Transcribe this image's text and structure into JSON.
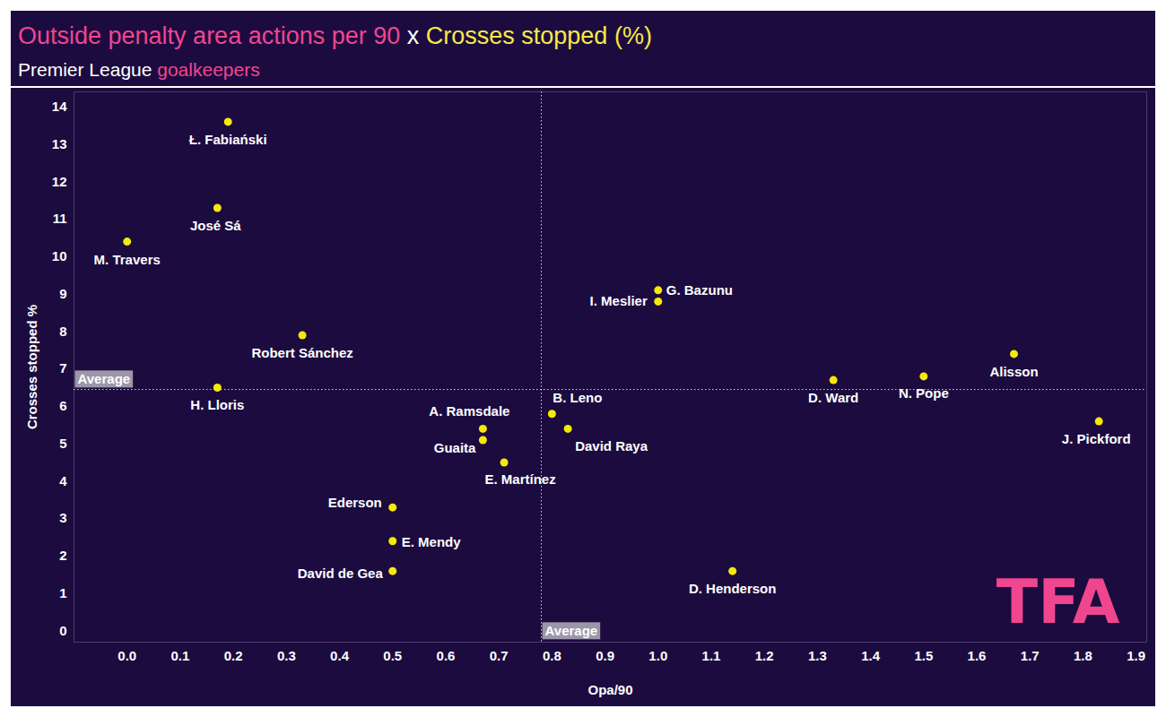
{
  "chart_data": {
    "type": "scatter",
    "title": [
      {
        "text": "Outside penalty area actions per 90",
        "color": "#f0468f"
      },
      {
        "text": " x ",
        "color": "#ffffff"
      },
      {
        "text": "Crosses stopped (%)",
        "color": "#f5e94a"
      }
    ],
    "subtitle": [
      {
        "text": "Premier League ",
        "color": "#ffffff"
      },
      {
        "text": "goalkeepers",
        "color": "#f0468f"
      }
    ],
    "x_label": "Opa/90",
    "y_label": "Crosses stopped %",
    "point_labels": [
      "Ł. Fabiański",
      "José Sá",
      "M. Travers",
      "Robert Sánchez",
      "H. Lloris",
      "A. Ramsdale",
      "Guaita",
      "E. Martínez",
      "Ederson",
      "E. Mendy",
      "David de Gea",
      "B. Leno",
      "David Raya",
      "I. Meslier",
      "G. Bazunu",
      "D. Henderson",
      "D. Ward",
      "N. Pope",
      "Alisson",
      "J. Pickford"
    ],
    "x": [
      0.19,
      0.17,
      0.0,
      0.33,
      0.17,
      0.67,
      0.67,
      0.71,
      0.5,
      0.5,
      0.5,
      0.8,
      0.83,
      1.0,
      1.0,
      1.14,
      1.33,
      1.5,
      1.67,
      1.83
    ],
    "values": [
      13.6,
      11.3,
      10.4,
      7.9,
      6.5,
      5.4,
      5.1,
      4.5,
      3.3,
      2.4,
      1.6,
      5.8,
      5.4,
      8.8,
      9.1,
      1.6,
      6.7,
      6.8,
      7.4,
      5.6
    ],
    "color": "#f5e90a",
    "x_average": 0.78,
    "y_average": 6.45,
    "average_label": "Average",
    "watermark": "TFA",
    "xlim": [
      -0.1,
      1.92
    ],
    "ylim": [
      -0.3,
      14.4
    ],
    "xticks": [
      {
        "value": 0,
        "label": "0.0"
      },
      0.1,
      0.2,
      0.3,
      0.4,
      0.5,
      0.6,
      0.7,
      0.8,
      0.9,
      {
        "value": 1,
        "label": "1.0"
      },
      1.1,
      1.2,
      1.3,
      1.4,
      1.5,
      1.6,
      1.7,
      1.8,
      1.9
    ],
    "yticks": [
      0,
      1,
      2,
      3,
      4,
      5,
      6,
      7,
      8,
      9,
      10,
      11,
      12,
      13,
      14
    ],
    "grid": false
  }
}
